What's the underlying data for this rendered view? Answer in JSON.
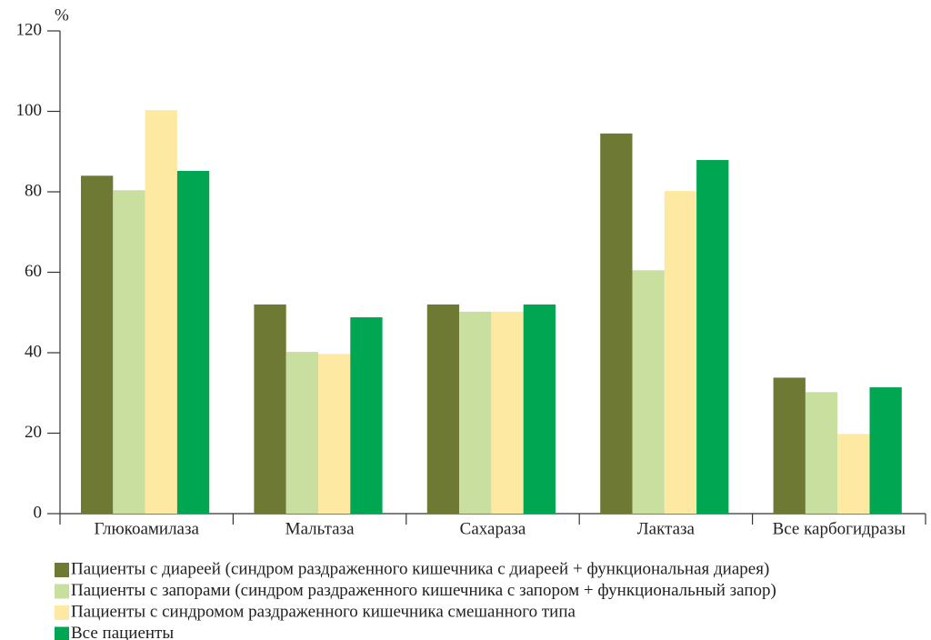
{
  "chart_data": {
    "type": "bar",
    "y_label": "%",
    "categories": [
      "Глюкоамилаза",
      "Мальтаза",
      "Сахараза",
      "Лактаза",
      "Все карбогидразы"
    ],
    "series": [
      {
        "name": "Пациенты с диареей (синдром раздраженного кишечника с диареей + функциональная диарея)",
        "color": "#6e7a34",
        "values": [
          84,
          52,
          52,
          94.5,
          33.8
        ]
      },
      {
        "name": "Пациенты с запорами (синдром раздраженного кишечника с запором + функциональный запор)",
        "color": "#c9df9f",
        "values": [
          80.4,
          40.2,
          50.2,
          60.5,
          30.2
        ]
      },
      {
        "name": "Пациенты с синдромом раздраженного кишечника смешанного типа",
        "color": "#fde9a1",
        "values": [
          100.3,
          39.7,
          50.2,
          80.2,
          19.8
        ]
      },
      {
        "name": "Все пациенты",
        "color": "#00a651",
        "values": [
          85.2,
          48.8,
          52,
          87.9,
          31.4
        ]
      }
    ],
    "ylim": [
      0,
      120
    ],
    "yticks": [
      0,
      20,
      40,
      60,
      80,
      100,
      120
    ],
    "grid": false,
    "legend": "bottom"
  }
}
